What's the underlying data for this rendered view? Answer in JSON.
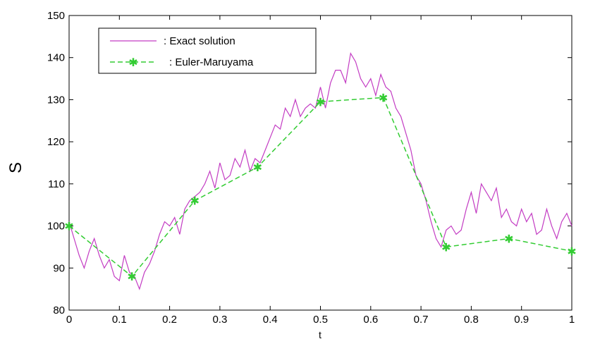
{
  "chart_data": {
    "type": "line",
    "title": "",
    "xlabel": "t",
    "ylabel": "S",
    "xlim": [
      0,
      1
    ],
    "ylim": [
      80,
      150
    ],
    "xticks": [
      0,
      0.1,
      0.2,
      0.3,
      0.4,
      0.5,
      0.6,
      0.7,
      0.8,
      0.9,
      1
    ],
    "xtick_labels": [
      "0",
      "0.1",
      "0.2",
      "0.3",
      "0.4",
      "0.5",
      "0.6",
      "0.7",
      "0.8",
      "0.9",
      "1"
    ],
    "yticks": [
      80,
      90,
      100,
      110,
      120,
      130,
      140,
      150
    ],
    "ytick_labels": [
      "80",
      "90",
      "100",
      "110",
      "120",
      "130",
      "140",
      "150"
    ],
    "grid": false,
    "legend_position": "top-left",
    "series": [
      {
        "name": ": Exact solution",
        "color": "#c33cc3",
        "style": "solid",
        "x": [
          0,
          0.01,
          0.02,
          0.03,
          0.04,
          0.05,
          0.06,
          0.07,
          0.08,
          0.09,
          0.1,
          0.11,
          0.12,
          0.13,
          0.14,
          0.15,
          0.16,
          0.17,
          0.18,
          0.19,
          0.2,
          0.21,
          0.22,
          0.23,
          0.24,
          0.25,
          0.26,
          0.27,
          0.28,
          0.29,
          0.3,
          0.31,
          0.32,
          0.33,
          0.34,
          0.35,
          0.36,
          0.37,
          0.38,
          0.39,
          0.4,
          0.41,
          0.42,
          0.43,
          0.44,
          0.45,
          0.46,
          0.47,
          0.48,
          0.49,
          0.5,
          0.51,
          0.52,
          0.53,
          0.54,
          0.55,
          0.56,
          0.57,
          0.58,
          0.59,
          0.6,
          0.61,
          0.62,
          0.63,
          0.64,
          0.65,
          0.66,
          0.67,
          0.68,
          0.69,
          0.7,
          0.71,
          0.72,
          0.73,
          0.74,
          0.75,
          0.76,
          0.77,
          0.78,
          0.79,
          0.8,
          0.81,
          0.82,
          0.83,
          0.84,
          0.85,
          0.86,
          0.87,
          0.88,
          0.89,
          0.9,
          0.91,
          0.92,
          0.93,
          0.94,
          0.95,
          0.96,
          0.97,
          0.98,
          0.99,
          1.0
        ],
        "values": [
          101,
          97,
          93,
          90,
          94,
          97,
          93,
          90,
          92,
          88,
          87,
          93,
          89,
          88,
          85,
          89,
          91,
          94,
          98,
          101,
          100,
          102,
          98,
          104,
          106,
          107,
          108,
          110,
          113,
          109,
          115,
          111,
          112,
          116,
          114,
          118,
          113,
          116,
          115,
          118,
          121,
          124,
          123,
          128,
          126,
          130,
          126,
          128,
          129,
          128,
          133,
          128,
          134,
          137,
          137,
          134,
          141,
          139,
          135,
          133,
          135,
          131,
          136,
          133,
          132,
          128,
          126,
          122,
          118,
          112,
          110,
          106,
          101,
          97,
          95,
          99,
          100,
          98,
          99,
          104,
          108,
          103,
          110,
          108,
          106,
          109,
          102,
          104,
          101,
          100,
          104,
          101,
          103,
          98,
          99,
          104,
          100,
          97,
          101,
          103,
          100
        ]
      },
      {
        "name": ": Euler-Maruyama",
        "color": "#33cc33",
        "style": "dashed",
        "marker": "*",
        "x": [
          0,
          0.125,
          0.25,
          0.375,
          0.5,
          0.625,
          0.75,
          0.875,
          1
        ],
        "values": [
          100,
          88,
          106,
          114,
          129.5,
          130.5,
          95,
          97,
          94
        ]
      }
    ]
  }
}
